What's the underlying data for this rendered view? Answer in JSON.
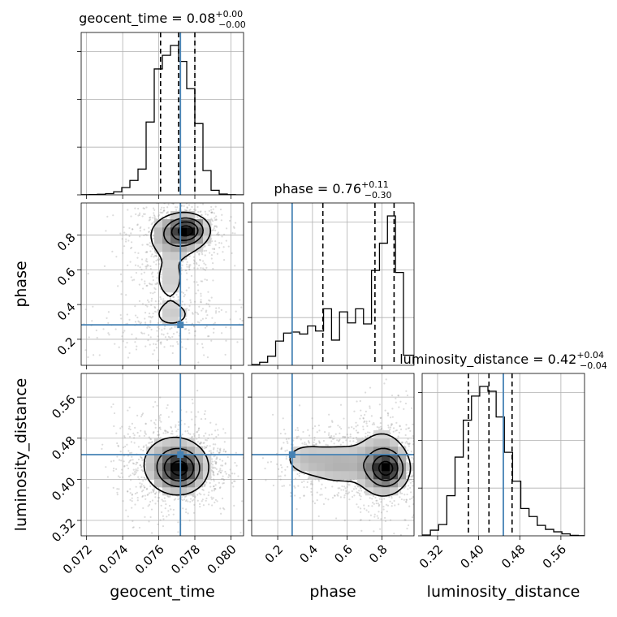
{
  "chart_data": {
    "type": "corner",
    "parameters": [
      "geocent_time",
      "phase",
      "luminosity_distance"
    ],
    "truths": {
      "geocent_time": 0.0772,
      "phase": 0.283,
      "luminosity_distance": 0.448
    },
    "colors": {
      "truth": "#4682b4",
      "hist": "#000000",
      "grid": "#b0b0b0",
      "samples": "#9a9a9a"
    },
    "grid": true,
    "titles": {
      "geocent_time": {
        "main": "geocent_time = 0.08",
        "sup": "+0.00",
        "sub": "−0.00"
      },
      "phase": {
        "main": "phase = 0.76",
        "sup": "+0.11",
        "sub": "−0.30"
      },
      "luminosity_distance": {
        "main": "luminosity_distance = 0.42",
        "sup": "+0.04",
        "sub": "−0.04"
      }
    },
    "axis_labels": {
      "geocent_time": "geocent_time",
      "phase": "phase",
      "luminosity_distance": "luminosity_distance"
    },
    "ranges": {
      "geocent_time": [
        0.0717,
        0.0807
      ],
      "phase": [
        0.05,
        0.985
      ],
      "luminosity_distance": [
        0.29,
        0.606
      ]
    },
    "ticks": {
      "geocent_time": [
        "0.072",
        "0.074",
        "0.076",
        "0.078",
        "0.080"
      ],
      "phase": [
        "0.2",
        "0.4",
        "0.6",
        "0.8"
      ],
      "luminosity_distance": [
        "0.32",
        "0.40",
        "0.48",
        "0.56"
      ]
    },
    "quantiles": {
      "geocent_time": [
        0.0761,
        0.0771,
        0.078
      ],
      "phase": [
        0.46,
        0.76,
        0.87
      ],
      "luminosity_distance": [
        0.38,
        0.42,
        0.465
      ]
    },
    "histograms": {
      "geocent_time": {
        "edges": [
          0.0717,
          0.07215,
          0.0726,
          0.07305,
          0.0735,
          0.07395,
          0.0744,
          0.07485,
          0.0753,
          0.07575,
          0.0762,
          0.07665,
          0.0771,
          0.07755,
          0.078,
          0.07845,
          0.0789,
          0.07935,
          0.0798,
          0.08025,
          0.0807
        ],
        "counts": [
          1,
          2,
          4,
          8,
          20,
          48,
          95,
          170,
          480,
          830,
          920,
          985,
          880,
          700,
          470,
          160,
          30,
          5,
          1,
          0
        ]
      },
      "phase": {
        "edges": [
          0.05,
          0.096,
          0.142,
          0.188,
          0.234,
          0.28,
          0.326,
          0.372,
          0.418,
          0.464,
          0.51,
          0.556,
          0.602,
          0.648,
          0.694,
          0.74,
          0.786,
          0.832,
          0.878,
          0.924,
          0.985
        ],
        "counts": [
          4,
          15,
          45,
          120,
          160,
          165,
          155,
          195,
          170,
          280,
          125,
          265,
          210,
          280,
          205,
          470,
          605,
          740,
          460,
          50
        ]
      },
      "luminosity_distance": {
        "edges": [
          0.29,
          0.306,
          0.322,
          0.338,
          0.354,
          0.37,
          0.386,
          0.402,
          0.418,
          0.434,
          0.45,
          0.466,
          0.482,
          0.498,
          0.514,
          0.53,
          0.546,
          0.562,
          0.578,
          0.594,
          0.606
        ],
        "counts": [
          5,
          35,
          70,
          250,
          490,
          720,
          870,
          930,
          900,
          740,
          520,
          340,
          170,
          120,
          65,
          40,
          25,
          12,
          3,
          1
        ]
      }
    },
    "densities": {
      "phase|geocent_time": [
        {
          "x": 0.0776,
          "y": 0.83,
          "sx": 0.0006,
          "sy": 0.045,
          "w": 1.0
        },
        {
          "x": 0.077,
          "y": 0.8,
          "sx": 0.0009,
          "sy": 0.07,
          "w": 0.55
        },
        {
          "x": 0.0766,
          "y": 0.55,
          "sx": 0.0008,
          "sy": 0.12,
          "w": 0.22
        },
        {
          "x": 0.0768,
          "y": 0.34,
          "sx": 0.0009,
          "sy": 0.05,
          "w": 0.18
        },
        {
          "x": 0.0756,
          "y": 0.22,
          "sx": 0.002,
          "sy": 0.06,
          "w": 0.08
        }
      ],
      "luminosity_distance|geocent_time": [
        {
          "x": 0.0772,
          "y": 0.42,
          "sx": 0.0007,
          "sy": 0.022,
          "w": 1.0
        },
        {
          "x": 0.0768,
          "y": 0.43,
          "sx": 0.0011,
          "sy": 0.035,
          "w": 0.45
        }
      ],
      "luminosity_distance|phase": [
        {
          "x": 0.83,
          "y": 0.42,
          "sx": 0.06,
          "sy": 0.02,
          "w": 1.0
        },
        {
          "x": 0.8,
          "y": 0.43,
          "sx": 0.09,
          "sy": 0.04,
          "w": 0.5
        },
        {
          "x": 0.55,
          "y": 0.43,
          "sx": 0.12,
          "sy": 0.025,
          "w": 0.4
        },
        {
          "x": 0.35,
          "y": 0.44,
          "sx": 0.08,
          "sy": 0.02,
          "w": 0.25
        }
      ]
    }
  }
}
